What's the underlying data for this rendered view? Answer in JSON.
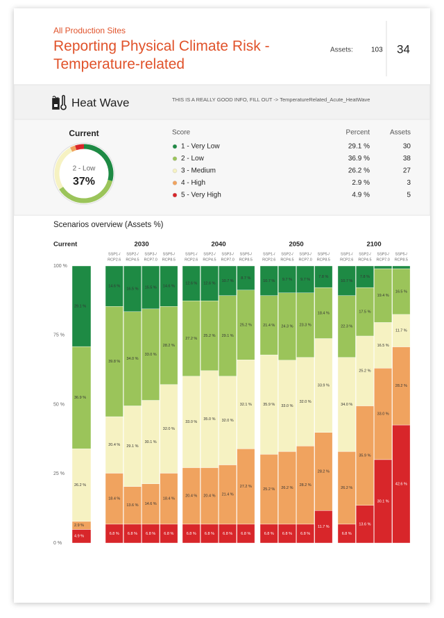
{
  "header": {
    "subtitle": "All Production Sites",
    "title": "Reporting Physical Climate Risk - Temperature-related",
    "assets_label": "Assets:",
    "assets_total": 103,
    "count": 34
  },
  "hazard": {
    "name": "Heat Wave",
    "note": "THIS IS A REALLY GOOD INFO, FILL OUT -> TemperatureRelated_Acute_HeatWave"
  },
  "current": {
    "heading": "Current",
    "donut_label": "2 - Low",
    "donut_value": "37%",
    "columns": [
      "Score",
      "Percent",
      "Assets"
    ],
    "rows": [
      {
        "label": "1 - Very Low",
        "color": "#1e8a44",
        "percent": 29.1,
        "percent_label": "29.1 %",
        "assets": 30
      },
      {
        "label": "2 - Low",
        "color": "#9bc45a",
        "percent": 36.9,
        "percent_label": "36.9 %",
        "assets": 38
      },
      {
        "label": "3 - Medium",
        "color": "#f6f2c2",
        "percent": 26.2,
        "percent_label": "26.2 %",
        "assets": 27
      },
      {
        "label": "4 - High",
        "color": "#f0a35f",
        "percent": 2.9,
        "percent_label": "2.9 %",
        "assets": 3
      },
      {
        "label": "5 - Very High",
        "color": "#d8262a",
        "percent": 4.9,
        "percent_label": "4.9 %",
        "assets": 5
      }
    ]
  },
  "chart_data": {
    "type": "stacked-bar",
    "title": "Scenarios overview (Assets %)",
    "ylim": [
      0,
      100
    ],
    "yticks": [
      {
        "value": 0,
        "label": "0 %"
      },
      {
        "value": 25,
        "label": "25 %"
      },
      {
        "value": 50,
        "label": "50 %"
      },
      {
        "value": 75,
        "label": "75 %"
      },
      {
        "value": 100,
        "label": "100 %"
      }
    ],
    "colors": [
      "#1e8a44",
      "#9bc45a",
      "#f6f2c2",
      "#f0a35f",
      "#d8262a"
    ],
    "groups": [
      {
        "label": "Current",
        "bars": [
          {
            "values": [
              29.1,
              36.9,
              26.2,
              2.9,
              4.9
            ],
            "value_labels": [
              "29.1 %",
              "36.9 %",
              "26.2 %",
              "2.9 %",
              "4.9 %"
            ]
          }
        ]
      },
      {
        "label": "2030",
        "bars": [
          {
            "label": [
              "SSP1-/",
              "RCP2.6"
            ],
            "values": [
              14.6,
              39.8,
              20.4,
              18.4,
              6.8
            ],
            "value_labels": [
              "14.6 %",
              "39.8 %",
              "20.4 %",
              "18.4 %",
              "6.8 %"
            ]
          },
          {
            "label": [
              "SSP2-/",
              "RCP4.5"
            ],
            "values": [
              16.5,
              34.0,
              29.1,
              13.6,
              6.8
            ],
            "value_labels": [
              "16.5 %",
              "34.0 %",
              "29.1 %",
              "13.6 %",
              "6.8 %"
            ]
          },
          {
            "label": [
              "SSP3-/",
              "RCP7.0"
            ],
            "values": [
              15.5,
              33.0,
              30.1,
              14.6,
              6.8
            ],
            "value_labels": [
              "15.5 %",
              "33.0 %",
              "30.1 %",
              "14.6 %",
              "6.8 %"
            ]
          },
          {
            "label": [
              "SSP5-/",
              "RCP8.5"
            ],
            "values": [
              14.6,
              28.2,
              32.0,
              18.4,
              6.8
            ],
            "value_labels": [
              "14.6 %",
              "28.2 %",
              "32.0 %",
              "18.4 %",
              "6.8 %"
            ]
          }
        ]
      },
      {
        "label": "2040",
        "bars": [
          {
            "label": [
              "SSP1-/",
              "RCP2.6"
            ],
            "values": [
              12.6,
              27.2,
              33.0,
              20.4,
              6.8
            ],
            "value_labels": [
              "12.6 %",
              "27.2 %",
              "33.0 %",
              "20.4 %",
              "6.8 %"
            ]
          },
          {
            "label": [
              "SSP2-/",
              "RCP4.5"
            ],
            "values": [
              12.6,
              25.2,
              35.0,
              20.4,
              6.8
            ],
            "value_labels": [
              "12.6 %",
              "25.2 %",
              "35.0 %",
              "20.4 %",
              "6.8 %"
            ]
          },
          {
            "label": [
              "SSP3-/",
              "RCP7.0"
            ],
            "values": [
              10.7,
              29.1,
              32.0,
              21.4,
              6.8
            ],
            "value_labels": [
              "10.7 %",
              "29.1 %",
              "32.0 %",
              "21.4 %",
              "6.8 %"
            ]
          },
          {
            "label": [
              "SSP5-/",
              "RCP8.5"
            ],
            "values": [
              8.7,
              25.2,
              32.1,
              27.2,
              6.8
            ],
            "value_labels": [
              "8.7 %",
              "25.2 %",
              "32.1 %",
              "27.2 %",
              "6.8 %"
            ]
          }
        ]
      },
      {
        "label": "2050",
        "bars": [
          {
            "label": [
              "SSP1-/",
              "RCP2.6"
            ],
            "values": [
              10.7,
              21.4,
              35.9,
              25.2,
              6.8
            ],
            "value_labels": [
              "10.7 %",
              "21.4 %",
              "35.9 %",
              "25.2 %",
              "6.8 %"
            ]
          },
          {
            "label": [
              "SSP2-/",
              "RCP4.5"
            ],
            "values": [
              9.7,
              24.3,
              33.0,
              26.2,
              6.8
            ],
            "value_labels": [
              "9.7 %",
              "24.3 %",
              "33.0 %",
              "26.2 %",
              "6.8 %"
            ]
          },
          {
            "label": [
              "SSP3-/",
              "RCP7.0"
            ],
            "values": [
              9.7,
              23.3,
              32.0,
              28.2,
              6.8
            ],
            "value_labels": [
              "9.7 %",
              "23.3 %",
              "32.0 %",
              "28.2 %",
              "6.8 %"
            ]
          },
          {
            "label": [
              "SSP5-/",
              "RCP8.5"
            ],
            "values": [
              7.8,
              18.4,
              33.9,
              28.2,
              11.7
            ],
            "value_labels": [
              "7.8 %",
              "18.4 %",
              "33.9 %",
              "28.2 %",
              "11.7 %"
            ]
          }
        ]
      },
      {
        "label": "2100",
        "bars": [
          {
            "label": [
              "SSP1-/",
              "RCP2.6"
            ],
            "values": [
              10.7,
              22.3,
              34.0,
              26.2,
              6.8
            ],
            "value_labels": [
              "10.7 %",
              "22.3 %",
              "34.0 %",
              "26.2 %",
              "6.8 %"
            ]
          },
          {
            "label": [
              "SSP2-/",
              "RCP4.5"
            ],
            "values": [
              7.8,
              17.5,
              25.2,
              35.9,
              13.6
            ],
            "value_labels": [
              "7.8 %",
              "17.5 %",
              "25.2 %",
              "35.9 %",
              "13.6 %"
            ]
          },
          {
            "label": [
              "SSP3-/",
              "RCP7.0"
            ],
            "values": [
              1.0,
              19.4,
              16.5,
              33.0,
              30.1
            ],
            "value_labels": [
              null,
              "19.4 %",
              "16.5 %",
              "33.0 %",
              "30.1 %"
            ]
          },
          {
            "label": [
              "SSP5-/",
              "RCP8.5"
            ],
            "values": [
              1.0,
              16.5,
              11.7,
              28.2,
              42.6
            ],
            "value_labels": [
              null,
              "16.5 %",
              "11.7 %",
              "28.2 %",
              "42.6 %"
            ]
          }
        ]
      }
    ]
  }
}
